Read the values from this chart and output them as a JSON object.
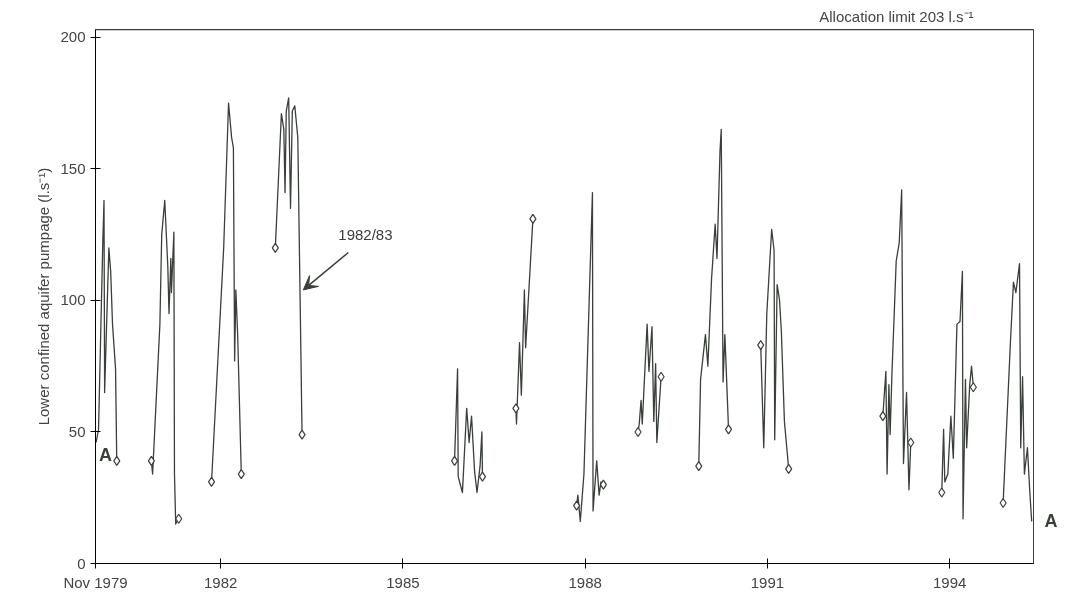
{
  "chart_data": {
    "type": "line",
    "ylabel": "Lower confined aquifer pumpage (l.s⁻¹)",
    "xlim": [
      1979.94,
      1995.38
    ],
    "xticks": [
      {
        "value": 1979.94,
        "label": "Nov 1979"
      },
      1982,
      1985,
      1988,
      1991,
      1994
    ],
    "ylim": [
      0,
      203
    ],
    "yticks": [
      0,
      50,
      100,
      150,
      200
    ],
    "grid": false,
    "ref_lines": [
      {
        "axis": "y",
        "value": 203,
        "label": "Allocation limit 203 l.s⁻¹",
        "color": "#3a3f3a"
      }
    ],
    "annotations": [
      {
        "text": "A",
        "x": 1979.95,
        "y": 46
      },
      {
        "text": "A",
        "x": 1995.35,
        "y": 16
      },
      {
        "text": "1982/83",
        "x": 1983.36,
        "y": 104
      }
    ],
    "series": [
      {
        "color": "#3a3f3a",
        "line_style": "solid",
        "marker": "none",
        "x": [
          1979.95,
          1979.99,
          1980.06,
          1980.08,
          1980.09,
          1980.16,
          1980.19,
          1980.22,
          1980.27,
          1980.29,
          null,
          1980.86,
          1980.88,
          1981.0,
          1981.03,
          1981.08,
          1981.13,
          1981.15,
          1981.18,
          1981.19,
          1981.23,
          1981.24,
          1981.26,
          1981.31,
          null,
          1981.85,
          1982.05,
          1982.13,
          1982.18,
          1982.21,
          1982.23,
          1982.25,
          1982.28,
          1982.34,
          null,
          1982.9,
          1983.0,
          1983.04,
          1983.06,
          1983.08,
          1983.12,
          1983.15,
          1983.18,
          1983.22,
          1983.27,
          1983.34,
          null,
          1985.85,
          1985.9,
          1985.91,
          1985.98,
          1986.05,
          1986.09,
          1986.13,
          1986.18,
          1986.22,
          1986.27,
          1986.3,
          1986.31,
          null,
          1986.86,
          1986.87,
          1986.92,
          1986.95,
          1987.0,
          1987.02,
          1987.14,
          null,
          1987.86,
          1987.88,
          1987.92,
          1987.98,
          1988.12,
          1988.13,
          1988.19,
          1988.23,
          1988.26,
          1988.3,
          null,
          1988.87,
          1988.89,
          1988.92,
          1988.94,
          1989.02,
          1989.05,
          1989.1,
          1989.13,
          1989.16,
          1989.18,
          1989.25,
          null,
          1989.87,
          1989.9,
          1989.98,
          1990.02,
          1990.08,
          1990.14,
          1990.17,
          1990.22,
          1990.24,
          1990.27,
          1990.3,
          1990.36,
          null,
          1990.89,
          1990.94,
          1990.99,
          1991.07,
          1991.11,
          1991.12,
          1991.16,
          1991.2,
          1991.23,
          1991.28,
          1991.35,
          null,
          1992.9,
          1992.95,
          1992.97,
          1993.0,
          1993.02,
          1993.05,
          1993.12,
          1993.17,
          1993.21,
          1993.24,
          1993.29,
          1993.33,
          1993.36,
          null,
          1993.87,
          1993.9,
          1993.92,
          1993.97,
          1994.02,
          1994.06,
          1994.12,
          1994.17,
          1994.21,
          1994.22,
          1994.26,
          1994.28,
          1994.33,
          1994.36,
          1994.39,
          null,
          1994.88,
          1995.0,
          1995.05,
          1995.09,
          1995.15,
          1995.17,
          1995.2,
          1995.23,
          1995.28,
          1995.32,
          1995.35
        ],
        "values": [
          46,
          51,
          122,
          138,
          65,
          120,
          111,
          91,
          74,
          39,
          null,
          39,
          34,
          91,
          125,
          138,
          113,
          95,
          116,
          103,
          126,
          34,
          15,
          17,
          null,
          31,
          120,
          175,
          162,
          158,
          77,
          104,
          87,
          34,
          null,
          120,
          171,
          165,
          141,
          172,
          177,
          135,
          172,
          174,
          162,
          49,
          null,
          39,
          74,
          33,
          27,
          59,
          46,
          56,
          35,
          27,
          37,
          50,
          33,
          null,
          59,
          53,
          84,
          64,
          104,
          82,
          131,
          null,
          22,
          26,
          16,
          34,
          141,
          20,
          39,
          26,
          31,
          30,
          null,
          50,
          53,
          62,
          53,
          91,
          73,
          90,
          54,
          76,
          46,
          71,
          null,
          37,
          70,
          87,
          75,
          108,
          129,
          116,
          157,
          165,
          69,
          87,
          51,
          null,
          83,
          44,
          95,
          127,
          119,
          47,
          106,
          100,
          88,
          54,
          36,
          null,
          56,
          73,
          34,
          68,
          49,
          72,
          115,
          122,
          142,
          38,
          65,
          28,
          46,
          null,
          27,
          51,
          31,
          34,
          56,
          40,
          91,
          92,
          111,
          17,
          70,
          44,
          68,
          75,
          67,
          null,
          23,
          84,
          107,
          103,
          114,
          44,
          71,
          34,
          44,
          27,
          16
        ]
      },
      {
        "type": "scatter",
        "color": "#3a3f3a",
        "marker": "diamond",
        "x": [
          1980.29,
          1980.86,
          1981.31,
          1981.85,
          1982.34,
          1982.9,
          1983.34,
          1985.85,
          1986.31,
          1986.86,
          1987.14,
          1987.86,
          1988.3,
          1988.87,
          1989.25,
          1989.87,
          1990.36,
          1990.89,
          1991.35,
          1992.9,
          1993.36,
          1993.87,
          1994.39,
          1994.88
        ],
        "values": [
          39,
          39,
          17,
          31,
          34,
          120,
          49,
          39,
          33,
          59,
          131,
          22,
          30,
          50,
          71,
          37,
          51,
          83,
          36,
          56,
          46,
          27,
          67,
          23
        ]
      }
    ]
  }
}
